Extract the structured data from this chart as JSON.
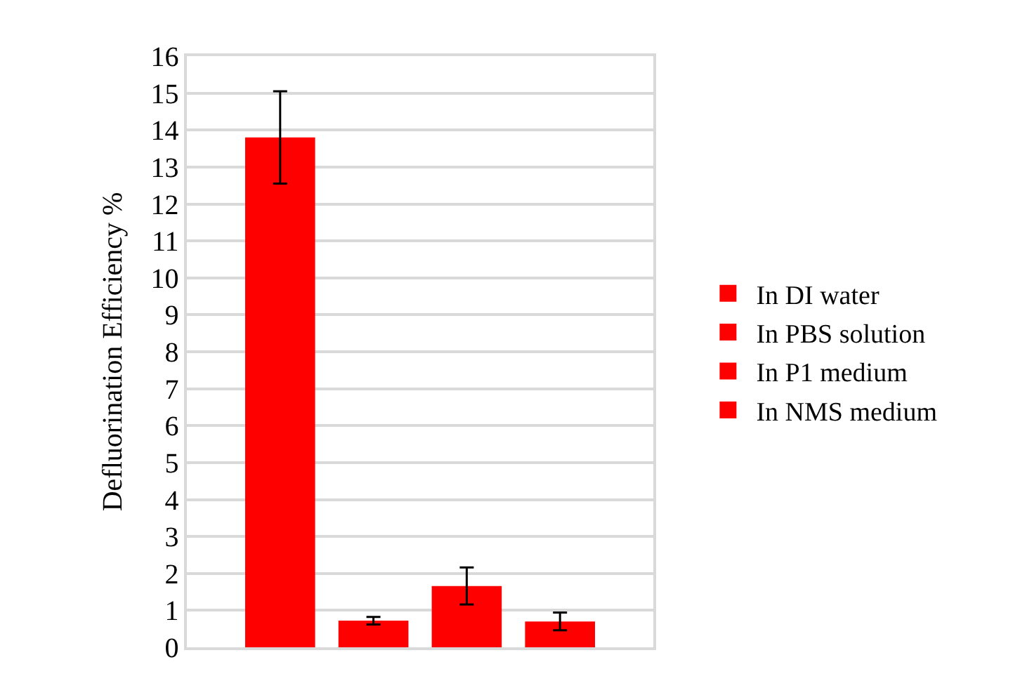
{
  "chart_data": {
    "type": "bar",
    "ylabel": "Defluorination Efficiency %",
    "categories": [
      null
    ],
    "series": [
      {
        "name": "In DI water",
        "color": "#ff0000",
        "values": [
          13.8
        ],
        "errors": [
          1.25
        ]
      },
      {
        "name": "In PBS solution",
        "color": "#ff0000",
        "values": [
          0.72
        ],
        "errors": [
          0.1
        ]
      },
      {
        "name": "In P1 medium",
        "color": "#ff0000",
        "values": [
          1.66
        ],
        "errors": [
          0.5
        ]
      },
      {
        "name": "In NMS medium",
        "color": "#ff0000",
        "values": [
          0.7
        ],
        "errors": [
          0.24
        ]
      }
    ],
    "ylim": [
      0,
      16
    ],
    "yticks": [
      0,
      1,
      2,
      3,
      4,
      5,
      6,
      7,
      8,
      9,
      10,
      11,
      12,
      13,
      14,
      15,
      16
    ],
    "grid": "y",
    "legend": "right"
  }
}
